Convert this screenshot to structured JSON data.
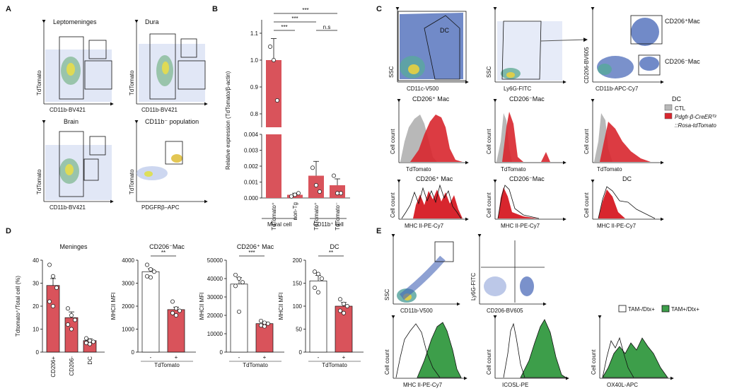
{
  "panels": {
    "A": {
      "letter": "A",
      "plots": [
        {
          "title": "Leptomeninges",
          "ylabel": "TdTomato",
          "xlabel": "CD11b-BV421"
        },
        {
          "title": "Dura",
          "ylabel": "TdTomato",
          "xlabel": "CD11b-BV421"
        },
        {
          "title": "Brain",
          "ylabel": "TdTomato",
          "xlabel": "CD11b-BV421"
        },
        {
          "title": "CD11b⁻ population",
          "ylabel": "TdTomato",
          "xlabel": "PDGFRβ–APC"
        }
      ]
    },
    "B": {
      "letter": "B",
      "ylabel": "Relative expression (TdTomato/β-actin)",
      "group_labels": [
        "Mural cell",
        "CD11b⁺ cell"
      ],
      "sig": [
        "***",
        "***",
        "***",
        "n.s"
      ],
      "color": "#d9535b"
    },
    "C": {
      "letter": "C",
      "scatter_titles": [
        "DC",
        "CD206⁺Mac",
        "CD206⁻Mac"
      ],
      "scatter_axes": [
        {
          "xlabel": "CD11c-V500",
          "ylabel": "SSC"
        },
        {
          "xlabel": "Ly6G-FITC",
          "ylabel": "SSC"
        },
        {
          "xlabel": "CD11b-APC-Cy7",
          "ylabel": "CD206-BV605"
        }
      ],
      "hist_titles": [
        "CD206⁺ Mac",
        "CD206⁻Mac",
        "DC"
      ],
      "hist_xlabels_row1": [
        "TdTomato",
        "TdTomato",
        "TdTomato"
      ],
      "hist_xlabels_row2": [
        "MHC II-PE-Cy7",
        "MHC II-PE-Cy7",
        "MHC II-PE-Cy7"
      ],
      "hist_ylabel": "Cell count",
      "legend": {
        "ctl": "CTL",
        "tg1": "Pdgfr-β-CreERᵀ²",
        "tg2": "::Rosa-tdTomato",
        "ctl_color": "#b8b8b8",
        "tg_color": "#d8262e"
      }
    },
    "D": {
      "letter": "D",
      "titles": [
        "Meninges",
        "CD206⁻Mac",
        "CD206⁺ Mac",
        "DC"
      ],
      "ylabels": [
        "Tdtomato⁺/Total cell (%)",
        "MHCII MFI",
        "MHCII MFI",
        "MHCII MFI"
      ],
      "xlabel": "TdTomato",
      "sig": [
        "**",
        "***",
        "**"
      ],
      "color": "#d9535b"
    },
    "E": {
      "letter": "E",
      "scatter_axes": [
        {
          "xlabel": "CD11b-V500",
          "ylabel": "SSC"
        },
        {
          "xlabel": "CD206-BV605",
          "ylabel": "Ly6G-FITC"
        }
      ],
      "hist_xlabels": [
        "MHC II-PE-Cy7",
        "ICOSL-PE",
        "OX40L-APC"
      ],
      "hist_ylabel": "Cell count",
      "legend": {
        "neg": "TAM-/Dtx+",
        "pos": "TAM+/Dtx+",
        "pos_color": "#3d9e4a"
      }
    }
  },
  "chart_data": [
    {
      "type": "bar",
      "title": "",
      "ylabel": "Relative expression (TdTomato/β-actin)",
      "categories": [
        "TdTomato⁺",
        "non-Tg",
        "TdTomato⁺",
        "TdTomato⁻"
      ],
      "values": [
        1.0,
        0.0002,
        0.0014,
        0.0008
      ],
      "errors": [
        0.08,
        0.0001,
        0.0009,
        0.0004
      ],
      "points": [
        [
          1.05,
          1.0,
          0.85
        ],
        [
          0.0001,
          0.0002,
          0.0003
        ],
        [
          0.0019,
          0.0008,
          0.0004
        ],
        [
          0.0014,
          0.0003,
          0.0003
        ]
      ],
      "yticks_upper": [
        "0.8",
        "0.9",
        "1.0",
        "1.1"
      ],
      "yticks_lower": [
        "0.000",
        "0.001",
        "0.002",
        "0.003",
        "0.004"
      ],
      "axis_break": [
        0.004,
        0.75
      ]
    },
    {
      "type": "bar",
      "title": "Meninges",
      "ylabel": "Tdtomato⁺/Total cell (%)",
      "categories": [
        "CD206+",
        "CD206-",
        "DC"
      ],
      "values": [
        29,
        15,
        5
      ],
      "errors": [
        3,
        2.5,
        0.8
      ],
      "points": [
        [
          38,
          33,
          28,
          22,
          20
        ],
        [
          19,
          16,
          14,
          12,
          10
        ],
        [
          6,
          5,
          4.5,
          4,
          3.5
        ]
      ],
      "ylim": [
        0,
        40
      ],
      "yticks": [
        "0",
        "10",
        "20",
        "30",
        "40"
      ]
    },
    {
      "type": "bar",
      "title": "CD206⁻Mac",
      "ylabel": "MHCII MFI",
      "categories": [
        "-",
        "+"
      ],
      "values": [
        3500,
        1850
      ],
      "errors": [
        130,
        110
      ],
      "points": [
        [
          3800,
          3600,
          3500,
          3300,
          3250
        ],
        [
          2200,
          1900,
          1800,
          1700,
          1600
        ]
      ],
      "ylim": [
        0,
        4000
      ],
      "yticks": [
        "0",
        "1000",
        "2000",
        "3000",
        "4000"
      ]
    },
    {
      "type": "bar",
      "title": "CD206⁺ Mac",
      "ylabel": "MHCII MFI",
      "categories": [
        "-",
        "+"
      ],
      "values": [
        37000,
        15500
      ],
      "errors": [
        3500,
        800
      ],
      "points": [
        [
          42000,
          40000,
          38000,
          36000,
          22000
        ],
        [
          17000,
          16000,
          15500,
          14500,
          14000
        ]
      ],
      "ylim": [
        0,
        50000
      ],
      "yticks": [
        "0",
        "10000",
        "20000",
        "30000",
        "40000",
        "50000"
      ]
    },
    {
      "type": "bar",
      "title": "DC",
      "ylabel": "MHCII MFI",
      "categories": [
        "-",
        "+"
      ],
      "values": [
        155,
        100
      ],
      "errors": [
        12,
        8
      ],
      "points": [
        [
          175,
          170,
          160,
          140,
          130
        ],
        [
          115,
          105,
          100,
          90,
          85
        ]
      ],
      "ylim": [
        0,
        200
      ],
      "yticks": [
        "0",
        "50",
        "100",
        "150",
        "200"
      ]
    }
  ]
}
